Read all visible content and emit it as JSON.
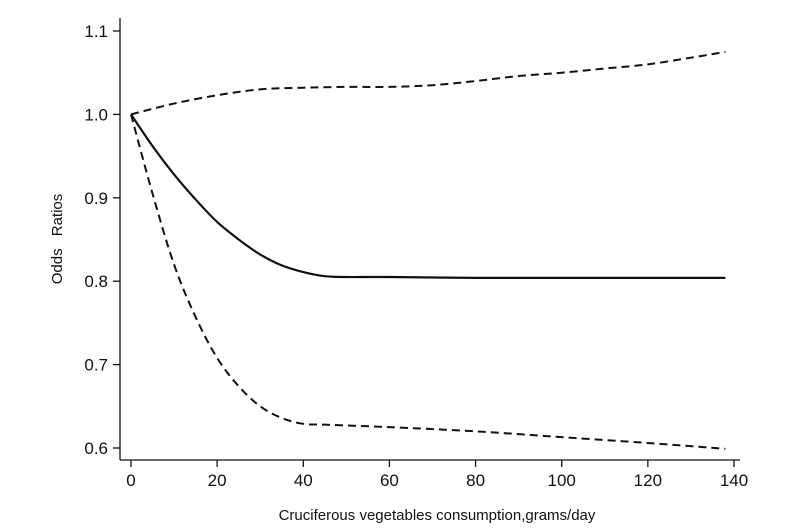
{
  "chart_data": {
    "type": "line",
    "title": "",
    "xlabel": "Cruciferous vegetables consumption,grams/day",
    "ylabel": "Odds Ratios",
    "xlim": [
      0,
      140
    ],
    "ylim": [
      0.6,
      1.1
    ],
    "x_ticks": [
      0,
      20,
      40,
      60,
      80,
      100,
      120,
      140
    ],
    "y_ticks": [
      0.6,
      0.7,
      0.8,
      0.9,
      1.0,
      1.1
    ],
    "x_tick_labels": [
      "0",
      "20",
      "40",
      "60",
      "80",
      "100",
      "120",
      "140"
    ],
    "y_tick_labels": [
      "0.6",
      "0.7",
      "0.8",
      "0.9",
      "1.0",
      "1.1"
    ],
    "grid": false,
    "legend": "none",
    "series": [
      {
        "style": "dashed",
        "x": [
          0,
          10,
          20,
          30,
          40,
          50,
          60,
          70,
          80,
          90,
          100,
          110,
          120,
          130,
          138
        ],
        "y": [
          1.0,
          1.013,
          1.023,
          1.03,
          1.032,
          1.033,
          1.033,
          1.035,
          1.04,
          1.046,
          1.05,
          1.055,
          1.06,
          1.068,
          1.075
        ]
      },
      {
        "style": "solid",
        "x": [
          0,
          5,
          10,
          15,
          20,
          25,
          30,
          35,
          40,
          45,
          50,
          60,
          80,
          100,
          120,
          138
        ],
        "y": [
          1.0,
          0.962,
          0.928,
          0.898,
          0.871,
          0.85,
          0.832,
          0.819,
          0.811,
          0.806,
          0.805,
          0.805,
          0.804,
          0.804,
          0.804,
          0.804
        ]
      },
      {
        "style": "dashed",
        "x": [
          0,
          5,
          10,
          15,
          20,
          25,
          30,
          35,
          40,
          45,
          50,
          60,
          80,
          100,
          120,
          138
        ],
        "y": [
          1.0,
          0.905,
          0.82,
          0.757,
          0.708,
          0.674,
          0.65,
          0.636,
          0.629,
          0.628,
          0.627,
          0.625,
          0.62,
          0.613,
          0.606,
          0.599
        ]
      }
    ]
  }
}
